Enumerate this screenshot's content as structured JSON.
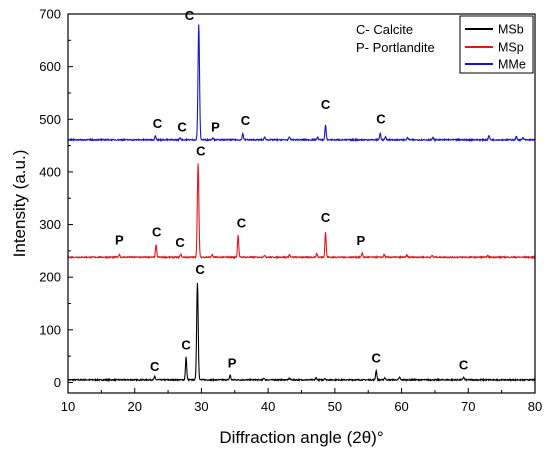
{
  "chart_data": {
    "type": "line",
    "xlabel": "Diffraction angle (2θ)°",
    "ylabel": "Intensity (a.u.)",
    "xlim": [
      10,
      80
    ],
    "ylim": [
      -20,
      700
    ],
    "xticks": [
      10,
      20,
      30,
      40,
      50,
      60,
      70,
      80
    ],
    "yticks": [
      0,
      100,
      200,
      300,
      400,
      500,
      600,
      700
    ],
    "grid": false,
    "legend_position": "top-right",
    "key": [
      "C- Calcite",
      "P- Portlandite"
    ],
    "series": [
      {
        "name": "MSb",
        "color": "#000000",
        "baseline": 5,
        "peaks": [
          [
            23.0,
            6
          ],
          [
            27.7,
            43
          ],
          [
            29.4,
            185
          ],
          [
            34.3,
            9
          ],
          [
            39.4,
            3
          ],
          [
            43.2,
            3
          ],
          [
            47.2,
            4
          ],
          [
            48.5,
            3
          ],
          [
            56.2,
            18
          ],
          [
            57.5,
            4
          ],
          [
            59.7,
            5
          ],
          [
            69.3,
            5
          ]
        ],
        "annotations": [
          {
            "label": "C",
            "x": 23.0,
            "y": 22
          },
          {
            "label": "C",
            "x": 27.7,
            "y": 63
          },
          {
            "label": "C",
            "x": 29.8,
            "y": 206
          },
          {
            "label": "P",
            "x": 34.6,
            "y": 28
          },
          {
            "label": "C",
            "x": 56.2,
            "y": 38
          },
          {
            "label": "C",
            "x": 69.3,
            "y": 25
          }
        ]
      },
      {
        "name": "MSp",
        "color": "#e8141b",
        "baseline": 238,
        "peaks": [
          [
            17.7,
            5
          ],
          [
            23.2,
            23
          ],
          [
            26.9,
            6
          ],
          [
            29.5,
            178
          ],
          [
            31.6,
            5
          ],
          [
            35.5,
            43
          ],
          [
            39.5,
            4
          ],
          [
            43.2,
            5
          ],
          [
            47.3,
            7
          ],
          [
            48.6,
            48
          ],
          [
            54.1,
            8
          ],
          [
            57.4,
            5
          ],
          [
            60.8,
            4
          ],
          [
            64.6,
            3
          ],
          [
            72.9,
            3
          ]
        ],
        "annotations": [
          {
            "label": "P",
            "x": 17.7,
            "y": 262
          },
          {
            "label": "C",
            "x": 23.3,
            "y": 277
          },
          {
            "label": "C",
            "x": 26.8,
            "y": 257
          },
          {
            "label": "C",
            "x": 29.9,
            "y": 431
          },
          {
            "label": "C",
            "x": 36.0,
            "y": 294
          },
          {
            "label": "C",
            "x": 48.6,
            "y": 305
          },
          {
            "label": "P",
            "x": 53.9,
            "y": 261
          }
        ]
      },
      {
        "name": "MMe",
        "color": "#1414d2",
        "baseline": 461,
        "peaks": [
          [
            23.1,
            8
          ],
          [
            26.8,
            4
          ],
          [
            29.6,
            218
          ],
          [
            31.7,
            4
          ],
          [
            36.2,
            12
          ],
          [
            39.5,
            5
          ],
          [
            43.2,
            5
          ],
          [
            47.4,
            5
          ],
          [
            48.6,
            28
          ],
          [
            56.8,
            12
          ],
          [
            57.6,
            5
          ],
          [
            60.9,
            4
          ],
          [
            64.7,
            4
          ],
          [
            73.1,
            8
          ],
          [
            77.2,
            6
          ],
          [
            78.2,
            4
          ]
        ],
        "annotations": [
          {
            "label": "C",
            "x": 23.4,
            "y": 483
          },
          {
            "label": "C",
            "x": 27.1,
            "y": 477
          },
          {
            "label": "C",
            "x": 28.2,
            "y": 689
          },
          {
            "label": "P",
            "x": 32.1,
            "y": 477
          },
          {
            "label": "C",
            "x": 36.6,
            "y": 489
          },
          {
            "label": "C",
            "x": 48.6,
            "y": 520
          },
          {
            "label": "C",
            "x": 56.9,
            "y": 492
          }
        ]
      }
    ]
  }
}
